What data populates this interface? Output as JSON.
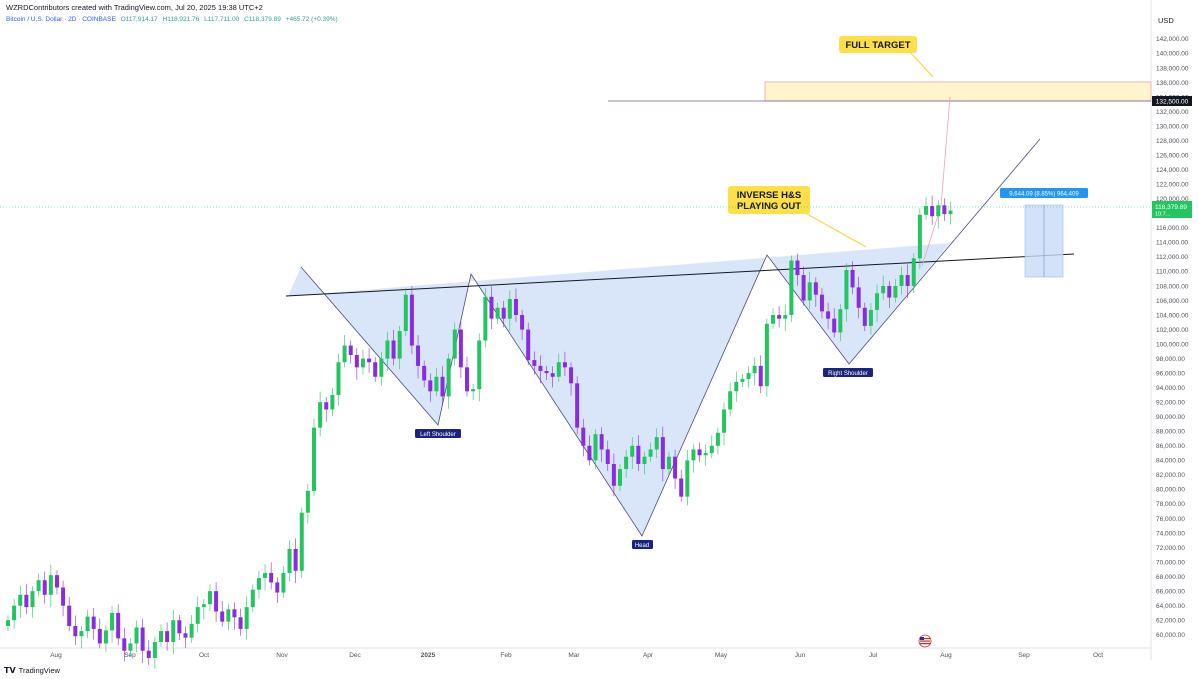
{
  "header": {
    "credit": "WZRDContributors created with TradingView.com, Jul 20, 2025 19:38 UTC+2",
    "symbol": "Bitcoin / U.S. Dollar · 2D · COINBASE",
    "open": "O117,914.17",
    "high": "H118,921.76",
    "low": "L117,711.00",
    "close": "C118,379.89",
    "change": "+465.72 (+0.39%)"
  },
  "currency": "USD",
  "footer": {
    "brand": "TradingView",
    "logo": "tradingview-logo-icon"
  },
  "colors": {
    "up": "#22c55e",
    "down": "#8a2be2",
    "pattern_fill": "#c9dbf7",
    "target_fill": "#fff5cc",
    "target_border": "#f0a0a0",
    "price_label": "#22c55e",
    "measure": "#2196f3"
  },
  "annotations": {
    "full_target": "FULL TARGET",
    "inverse_hs_line1": "INVERSE H&S",
    "inverse_hs_line2": "PLAYING OUT",
    "left_shoulder": "Left Shoulder",
    "head": "Head",
    "right_shoulder": "Right Shoulder",
    "measure_label": "9,644.09 (8.85%) 964,409"
  },
  "price_labels": {
    "target_line": "132,500.00",
    "last_price": "118,379.89",
    "last_sub": "10:7..."
  },
  "chart_data": {
    "type": "candlestick",
    "x_labels": [
      "Aug",
      "Sep",
      "Oct",
      "Nov",
      "Dec",
      "2025",
      "Feb",
      "Mar",
      "Apr",
      "May",
      "Jun",
      "Jul",
      "Aug",
      "Sep",
      "Oct"
    ],
    "y_ticks": [
      60000,
      62000,
      64000,
      66000,
      68000,
      70000,
      72000,
      74000,
      76000,
      78000,
      80000,
      82000,
      84000,
      86000,
      88000,
      90000,
      92000,
      94000,
      96000,
      98000,
      100000,
      102000,
      104000,
      106000,
      108000,
      110000,
      112000,
      114000,
      116000,
      118000,
      120000,
      122000,
      124000,
      126000,
      128000,
      130000,
      132000,
      134000,
      136000,
      138000,
      140000,
      142000
    ],
    "ylim": [
      59000,
      143500
    ],
    "key_levels": {
      "target": 132500,
      "last": 118380
    },
    "pattern_points": {
      "left_shoulder": 89000,
      "head": 74000,
      "right_shoulder": 97000
    },
    "closes": [
      62000,
      64000,
      65500,
      63800,
      66000,
      67500,
      65500,
      68200,
      66500,
      64000,
      61200,
      59800,
      60500,
      62500,
      60800,
      58800,
      60600,
      63000,
      59500,
      57800,
      58800,
      61000,
      57800,
      56800,
      59000,
      60500,
      59000,
      62000,
      60200,
      59600,
      61500,
      63800,
      64200,
      66000,
      63200,
      61800,
      63500,
      62400,
      60800,
      63800,
      66200,
      67800,
      68500,
      67200,
      65800,
      68500,
      71800,
      68800,
      76800,
      79800,
      88500,
      92000,
      91000,
      93000,
      97500,
      99800,
      98500,
      96800,
      98000,
      97500,
      95500,
      98000,
      100500,
      98000,
      101800,
      106800,
      99800,
      97000,
      95000,
      93500,
      95500,
      92800,
      98000,
      102000,
      96800,
      93500,
      93800,
      100500,
      106500,
      103500,
      105000,
      103500,
      106200,
      104000,
      102000,
      97800,
      97000,
      96300,
      96000,
      95500,
      97500,
      96800,
      94600,
      88500,
      86000,
      84000,
      87600,
      85500,
      83500,
      80500,
      82800,
      84500,
      86000,
      83500,
      84500,
      85500,
      87200,
      82800,
      84500,
      81500,
      79000,
      84000,
      85500,
      84700,
      85000,
      86000,
      87800,
      91000,
      93500,
      94800,
      95200,
      96000,
      97000,
      94200,
      102800,
      104000,
      103500,
      104000,
      111500,
      109500,
      106000,
      108500,
      106800,
      104500,
      103500,
      101600,
      104800,
      110200,
      107800,
      105000,
      102500,
      104700,
      107000,
      108000,
      106400,
      108000,
      109500,
      108000,
      111800,
      117800,
      119000,
      117600,
      119100,
      117900,
      118380
    ]
  }
}
